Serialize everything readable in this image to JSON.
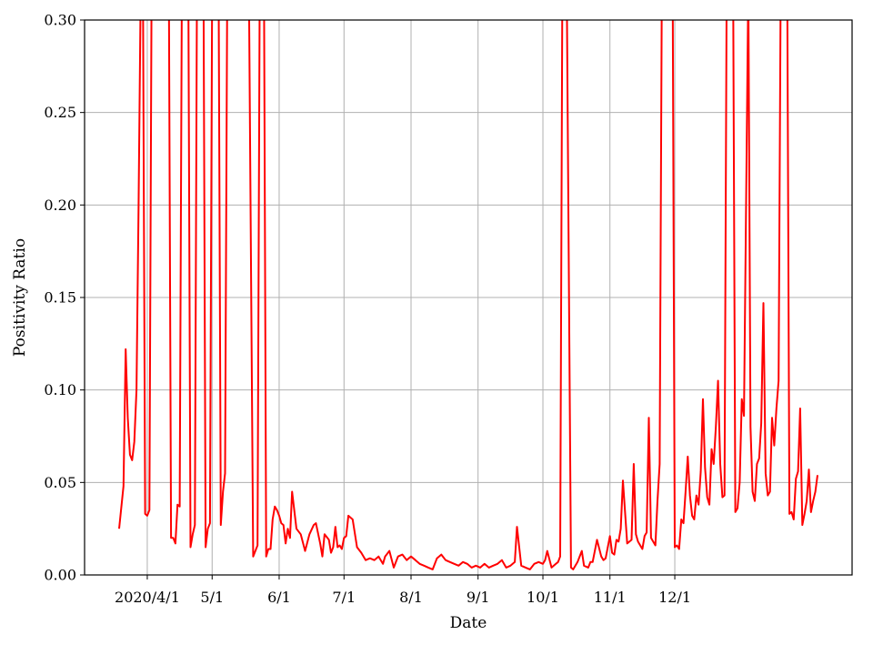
{
  "chart_data": {
    "type": "line",
    "title": "",
    "xlabel": "Date",
    "ylabel": "Positivity Ratio",
    "x_type": "date",
    "xlim": [
      "2020-03-03",
      "2021-02-21"
    ],
    "ylim": [
      0.0,
      0.3
    ],
    "y_ticks": [
      0.0,
      0.05,
      0.1,
      0.15,
      0.2,
      0.25,
      0.3
    ],
    "y_tick_labels": [
      "0.00",
      "0.05",
      "0.10",
      "0.15",
      "0.20",
      "0.25",
      "0.30"
    ],
    "x_ticks": [
      "2020-04-01",
      "2020-05-01",
      "2020-06-01",
      "2020-07-01",
      "2020-08-01",
      "2020-09-01",
      "2020-10-01",
      "2020-11-01",
      "2020-12-01"
    ],
    "x_tick_labels": [
      "2020/4/1",
      "5/1",
      "6/1",
      "7/1",
      "8/1",
      "9/1",
      "10/1",
      "11/1",
      "12/1"
    ],
    "grid": true,
    "legend": "none",
    "series": [
      {
        "color": "#ff0000",
        "x": [
          "2020-03-19",
          "2020-03-21",
          "2020-03-22",
          "2020-03-23",
          "2020-03-24",
          "2020-03-25",
          "2020-03-26",
          "2020-03-27",
          "2020-03-28",
          "2020-03-29",
          "2020-03-30",
          "2020-03-31",
          "2020-04-01",
          "2020-04-02",
          "2020-04-03",
          "2020-04-11",
          "2020-04-12",
          "2020-04-13",
          "2020-04-14",
          "2020-04-15",
          "2020-04-16",
          "2020-04-17",
          "2020-04-20",
          "2020-04-21",
          "2020-04-22",
          "2020-04-23",
          "2020-04-24",
          "2020-04-27",
          "2020-04-28",
          "2020-04-29",
          "2020-04-30",
          "2020-05-01",
          "2020-05-04",
          "2020-05-05",
          "2020-05-06",
          "2020-05-07",
          "2020-05-08",
          "2020-05-18",
          "2020-05-20",
          "2020-05-21",
          "2020-05-22",
          "2020-05-23",
          "2020-05-24",
          "2020-05-25",
          "2020-05-26",
          "2020-05-27",
          "2020-05-28",
          "2020-05-29",
          "2020-05-30",
          "2020-05-31",
          "2020-06-01",
          "2020-06-02",
          "2020-06-03",
          "2020-06-04",
          "2020-06-05",
          "2020-06-06",
          "2020-06-07",
          "2020-06-09",
          "2020-06-11",
          "2020-06-13",
          "2020-06-15",
          "2020-06-17",
          "2020-06-18",
          "2020-06-20",
          "2020-06-21",
          "2020-06-22",
          "2020-06-24",
          "2020-06-25",
          "2020-06-26",
          "2020-06-27",
          "2020-06-28",
          "2020-06-29",
          "2020-06-30",
          "2020-07-01",
          "2020-07-02",
          "2020-07-03",
          "2020-07-05",
          "2020-07-07",
          "2020-07-09",
          "2020-07-11",
          "2020-07-13",
          "2020-07-15",
          "2020-07-17",
          "2020-07-19",
          "2020-07-20",
          "2020-07-22",
          "2020-07-24",
          "2020-07-26",
          "2020-07-28",
          "2020-07-30",
          "2020-08-01",
          "2020-08-03",
          "2020-08-05",
          "2020-08-07",
          "2020-08-09",
          "2020-08-11",
          "2020-08-13",
          "2020-08-15",
          "2020-08-17",
          "2020-08-19",
          "2020-08-21",
          "2020-08-23",
          "2020-08-25",
          "2020-08-27",
          "2020-08-29",
          "2020-08-31",
          "2020-09-02",
          "2020-09-04",
          "2020-09-06",
          "2020-09-08",
          "2020-09-10",
          "2020-09-12",
          "2020-09-14",
          "2020-09-16",
          "2020-09-18",
          "2020-09-19",
          "2020-09-21",
          "2020-09-23",
          "2020-09-25",
          "2020-09-27",
          "2020-09-29",
          "2020-10-01",
          "2020-10-02",
          "2020-10-03",
          "2020-10-05",
          "2020-10-07",
          "2020-10-08",
          "2020-10-09",
          "2020-10-10",
          "2020-10-12",
          "2020-10-14",
          "2020-10-15",
          "2020-10-17",
          "2020-10-19",
          "2020-10-20",
          "2020-10-22",
          "2020-10-23",
          "2020-10-24",
          "2020-10-26",
          "2020-10-28",
          "2020-10-29",
          "2020-10-30",
          "2020-11-01",
          "2020-11-02",
          "2020-11-03",
          "2020-11-04",
          "2020-11-05",
          "2020-11-06",
          "2020-11-07",
          "2020-11-09",
          "2020-11-11",
          "2020-11-12",
          "2020-11-13",
          "2020-11-14",
          "2020-11-16",
          "2020-11-17",
          "2020-11-18",
          "2020-11-19",
          "2020-11-20",
          "2020-11-21",
          "2020-11-22",
          "2020-11-23",
          "2020-11-24",
          "2020-11-25",
          "2020-11-30",
          "2020-12-01",
          "2020-12-02",
          "2020-12-03",
          "2020-12-04",
          "2020-12-05",
          "2020-12-06",
          "2020-12-07",
          "2020-12-08",
          "2020-12-09",
          "2020-12-10",
          "2020-12-11",
          "2020-12-12",
          "2020-12-13",
          "2020-12-14",
          "2020-12-15",
          "2020-12-16",
          "2020-12-17",
          "2020-12-18",
          "2020-12-19",
          "2020-12-20",
          "2020-12-21",
          "2020-12-22",
          "2020-12-23",
          "2020-12-24",
          "2020-12-25",
          "2020-12-28",
          "2020-12-29",
          "2020-12-30",
          "2020-12-31",
          "2021-01-01",
          "2021-01-02",
          "2021-01-04",
          "2021-01-05",
          "2021-01-06",
          "2021-01-07",
          "2021-01-08",
          "2021-01-09",
          "2021-01-10",
          "2021-01-11",
          "2021-01-12",
          "2021-01-13",
          "2021-01-14",
          "2021-01-15",
          "2021-01-16",
          "2021-01-17",
          "2021-01-18",
          "2021-01-19",
          "2021-01-22",
          "2021-01-23",
          "2021-01-24",
          "2021-01-25",
          "2021-01-26",
          "2021-01-27",
          "2021-01-28",
          "2021-01-29",
          "2021-01-30",
          "2021-01-31",
          "2021-02-01",
          "2021-02-02",
          "2021-02-03",
          "2021-02-04",
          "2021-02-05"
        ],
        "values": [
          0.025,
          0.048,
          0.122,
          0.085,
          0.065,
          0.062,
          0.072,
          0.1,
          0.2,
          0.32,
          0.32,
          0.033,
          0.032,
          0.035,
          0.32,
          0.32,
          0.02,
          0.02,
          0.017,
          0.038,
          0.037,
          0.32,
          0.32,
          0.015,
          0.022,
          0.027,
          0.32,
          0.32,
          0.015,
          0.025,
          0.028,
          0.32,
          0.32,
          0.027,
          0.045,
          0.055,
          0.32,
          0.32,
          0.01,
          0.013,
          0.016,
          0.32,
          0.32,
          0.32,
          0.01,
          0.014,
          0.014,
          0.03,
          0.037,
          0.035,
          0.032,
          0.028,
          0.027,
          0.017,
          0.025,
          0.02,
          0.045,
          0.025,
          0.022,
          0.013,
          0.022,
          0.027,
          0.028,
          0.017,
          0.01,
          0.022,
          0.019,
          0.012,
          0.015,
          0.026,
          0.015,
          0.016,
          0.014,
          0.02,
          0.021,
          0.032,
          0.03,
          0.015,
          0.012,
          0.008,
          0.009,
          0.008,
          0.01,
          0.006,
          0.01,
          0.013,
          0.004,
          0.01,
          0.011,
          0.008,
          0.01,
          0.008,
          0.006,
          0.005,
          0.004,
          0.003,
          0.009,
          0.011,
          0.008,
          0.007,
          0.006,
          0.005,
          0.007,
          0.006,
          0.004,
          0.005,
          0.004,
          0.006,
          0.004,
          0.005,
          0.006,
          0.008,
          0.004,
          0.005,
          0.007,
          0.026,
          0.005,
          0.004,
          0.003,
          0.006,
          0.007,
          0.006,
          0.008,
          0.013,
          0.004,
          0.006,
          0.007,
          0.01,
          0.32,
          0.32,
          0.004,
          0.003,
          0.007,
          0.013,
          0.005,
          0.004,
          0.007,
          0.007,
          0.019,
          0.01,
          0.008,
          0.009,
          0.021,
          0.012,
          0.011,
          0.019,
          0.018,
          0.025,
          0.051,
          0.017,
          0.019,
          0.06,
          0.022,
          0.018,
          0.014,
          0.021,
          0.023,
          0.085,
          0.02,
          0.018,
          0.016,
          0.04,
          0.06,
          0.32,
          0.32,
          0.015,
          0.016,
          0.014,
          0.03,
          0.028,
          0.045,
          0.064,
          0.043,
          0.032,
          0.03,
          0.043,
          0.038,
          0.056,
          0.095,
          0.058,
          0.042,
          0.038,
          0.068,
          0.06,
          0.08,
          0.105,
          0.06,
          0.042,
          0.043,
          0.32,
          0.32,
          0.034,
          0.036,
          0.05,
          0.095,
          0.086,
          0.32,
          0.08,
          0.045,
          0.04,
          0.06,
          0.063,
          0.082,
          0.147,
          0.055,
          0.043,
          0.045,
          0.085,
          0.07,
          0.09,
          0.105,
          0.32,
          0.32,
          0.033,
          0.034,
          0.03,
          0.052,
          0.056,
          0.09,
          0.027,
          0.033,
          0.04,
          0.057,
          0.034,
          0.04,
          0.045,
          0.054
        ]
      }
    ]
  }
}
